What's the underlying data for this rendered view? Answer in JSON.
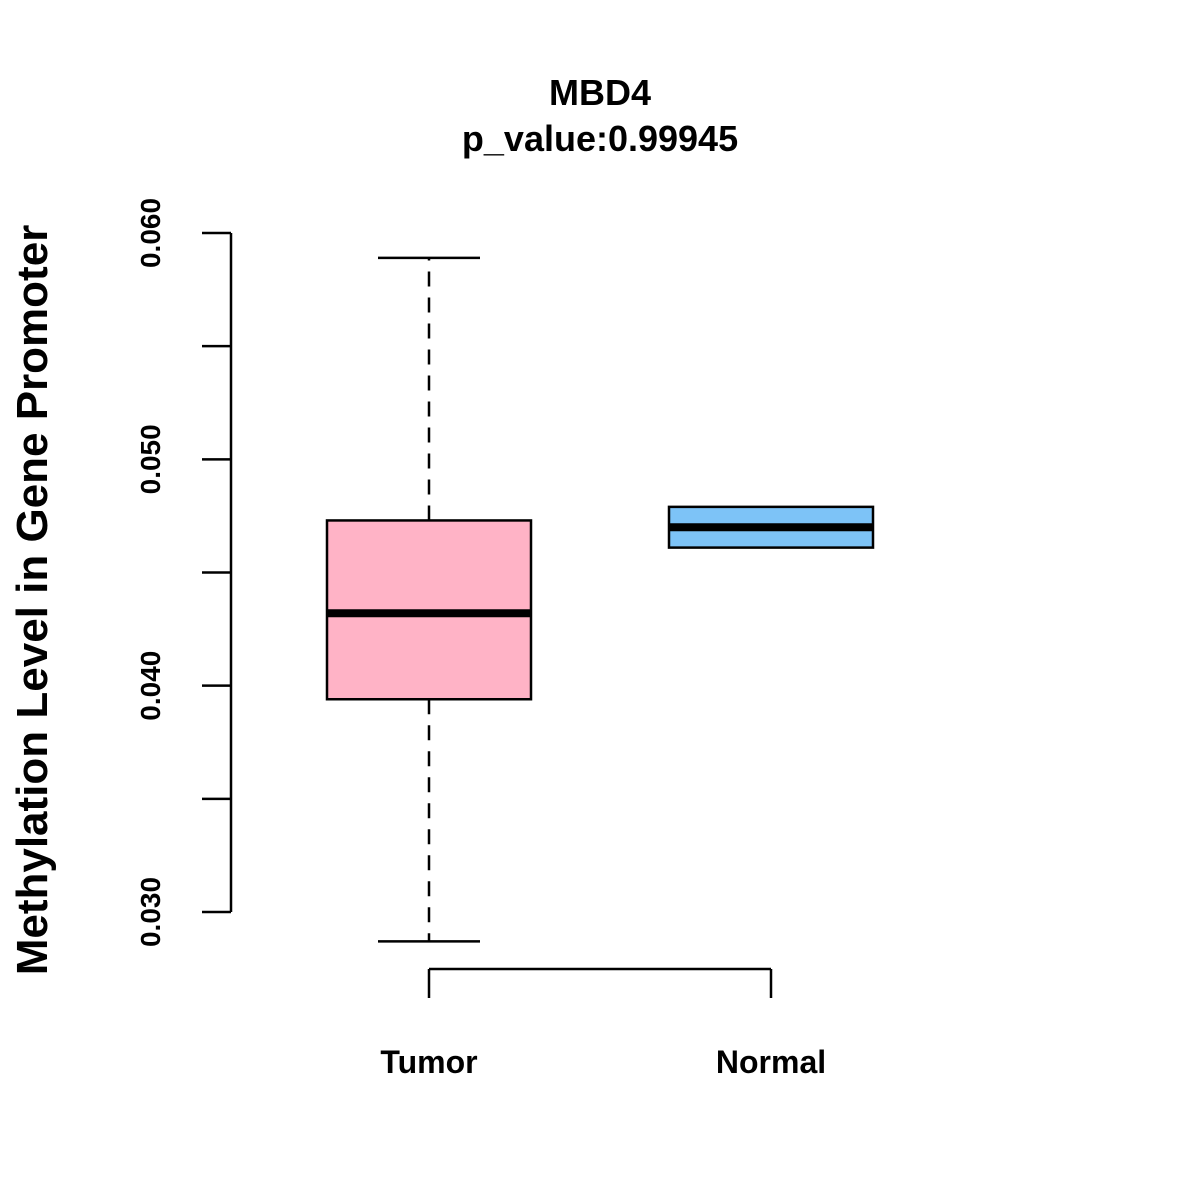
{
  "chart_data": {
    "type": "boxplot",
    "title": "MBD4",
    "subtitle": "p_value:0.99945",
    "xlabel": "",
    "ylabel": "Methylation Level in Gene Promoter",
    "ylim": [
      0.03,
      0.06
    ],
    "yticks": [
      0.03,
      0.035,
      0.04,
      0.045,
      0.05,
      0.055,
      0.06
    ],
    "ytick_labels": [
      "0.030",
      "0.040",
      "0.050",
      "0.060"
    ],
    "ytick_labeled_values": [
      0.03,
      0.04,
      0.05,
      0.06
    ],
    "categories": [
      "Tumor",
      "Normal"
    ],
    "boxes": [
      {
        "name": "Tumor",
        "whisker_low": 0.0287,
        "q1": 0.0394,
        "median": 0.0432,
        "q3": 0.0473,
        "whisker_high": 0.0589,
        "color": "#FFB3C6"
      },
      {
        "name": "Normal",
        "whisker_low": 0.0461,
        "q1": 0.0461,
        "median": 0.047,
        "q3": 0.0479,
        "whisker_high": 0.0479,
        "color": "#7DC3F7"
      }
    ],
    "grid": false,
    "legend": "none"
  }
}
